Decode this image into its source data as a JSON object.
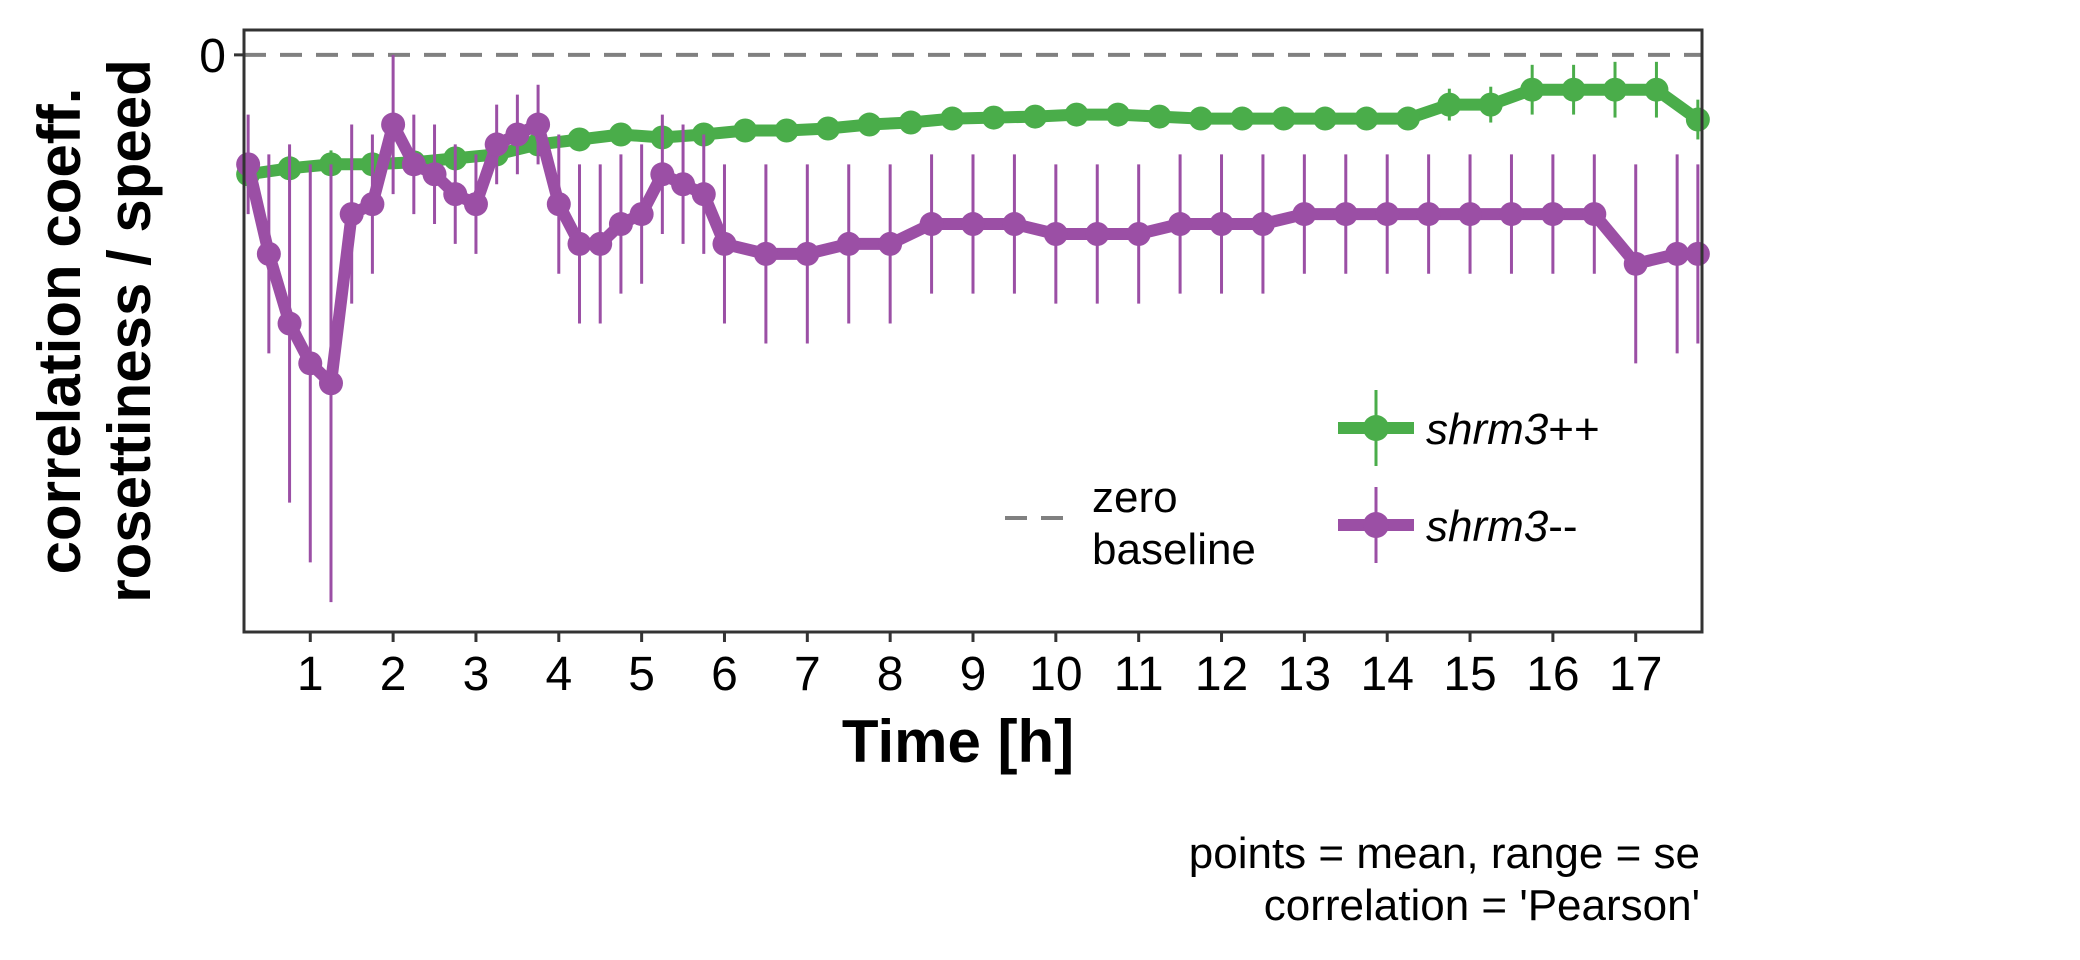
{
  "chart_data": {
    "type": "line",
    "title": "",
    "xlabel": "Time [h]",
    "ylabel_lines": [
      "correlation coeff.",
      "rosettiness / speed"
    ],
    "x_ticks": [
      1,
      2,
      3,
      4,
      5,
      6,
      7,
      8,
      9,
      10,
      11,
      12,
      13,
      14,
      15,
      16,
      17
    ],
    "y_ticks": [
      0
    ],
    "xlim": [
      0.2,
      17.8
    ],
    "ylim": [
      -0.58,
      0.025
    ],
    "grid": false,
    "reference_line": {
      "y": 0,
      "label_lines": [
        "zero",
        "baseline"
      ],
      "color": "#808080"
    },
    "legend": {
      "placement": "bottom-right",
      "entries": [
        {
          "series": 0,
          "label_italic": "shrm3",
          "label_suffix": "++"
        },
        {
          "series": 1,
          "label_italic": "shrm3",
          "label_suffix": "--"
        }
      ]
    },
    "caption_lines": [
      "points = mean, range = se",
      "correlation = 'Pearson'"
    ],
    "series": [
      {
        "name": "shrm3++",
        "color": "#4aad4a",
        "x": [
          0.25,
          0.75,
          1.25,
          1.75,
          2.25,
          2.75,
          3.25,
          3.75,
          4.25,
          4.75,
          5.25,
          5.75,
          6.25,
          6.75,
          7.25,
          7.75,
          8.25,
          8.75,
          9.25,
          9.75,
          10.25,
          10.75,
          11.25,
          11.75,
          12.25,
          12.75,
          13.25,
          13.75,
          14.25,
          14.75,
          15.25,
          15.75,
          16.25,
          16.75,
          17.25,
          17.75
        ],
        "y": [
          -0.12,
          -0.114,
          -0.11,
          -0.11,
          -0.108,
          -0.104,
          -0.1,
          -0.09,
          -0.085,
          -0.08,
          -0.083,
          -0.08,
          -0.076,
          -0.076,
          -0.074,
          -0.07,
          -0.068,
          -0.064,
          -0.063,
          -0.062,
          -0.06,
          -0.06,
          -0.062,
          -0.064,
          -0.064,
          -0.064,
          -0.064,
          -0.064,
          -0.064,
          -0.05,
          -0.05,
          -0.035,
          -0.035,
          -0.035,
          -0.035,
          -0.065
        ],
        "se": [
          0.014,
          0.014,
          0.014,
          0.012,
          0.012,
          0.012,
          0.011,
          0.01,
          0.01,
          0.01,
          0.009,
          0.009,
          0.009,
          0.009,
          0.009,
          0.009,
          0.008,
          0.008,
          0.008,
          0.008,
          0.008,
          0.008,
          0.008,
          0.008,
          0.008,
          0.008,
          0.008,
          0.008,
          0.008,
          0.016,
          0.018,
          0.025,
          0.025,
          0.028,
          0.028,
          0.02
        ]
      },
      {
        "name": "shrm3--",
        "color": "#9b4fa5",
        "x": [
          0.25,
          0.5,
          0.75,
          1.0,
          1.25,
          1.5,
          1.75,
          2.0,
          2.25,
          2.5,
          2.75,
          3.0,
          3.25,
          3.5,
          3.75,
          4.0,
          4.25,
          4.5,
          4.75,
          5.0,
          5.25,
          5.5,
          5.75,
          6.0,
          6.5,
          7.0,
          7.5,
          8.0,
          8.5,
          9.0,
          9.5,
          10.0,
          10.5,
          11.0,
          11.5,
          12.0,
          12.5,
          13.0,
          13.5,
          14.0,
          14.5,
          15.0,
          15.5,
          16.0,
          16.5,
          17.0,
          17.5,
          17.75
        ],
        "y": [
          -0.11,
          -0.2,
          -0.27,
          -0.31,
          -0.33,
          -0.16,
          -0.15,
          -0.07,
          -0.11,
          -0.12,
          -0.14,
          -0.15,
          -0.09,
          -0.08,
          -0.07,
          -0.15,
          -0.19,
          -0.19,
          -0.17,
          -0.16,
          -0.12,
          -0.13,
          -0.14,
          -0.19,
          -0.2,
          -0.2,
          -0.19,
          -0.19,
          -0.17,
          -0.17,
          -0.17,
          -0.18,
          -0.18,
          -0.18,
          -0.17,
          -0.17,
          -0.17,
          -0.16,
          -0.16,
          -0.16,
          -0.16,
          -0.16,
          -0.16,
          -0.16,
          -0.16,
          -0.21,
          -0.2,
          -0.2
        ],
        "se": [
          0.05,
          0.1,
          0.18,
          0.2,
          0.22,
          0.09,
          0.07,
          0.07,
          0.05,
          0.05,
          0.05,
          0.05,
          0.04,
          0.04,
          0.04,
          0.07,
          0.08,
          0.08,
          0.07,
          0.07,
          0.06,
          0.06,
          0.06,
          0.08,
          0.09,
          0.09,
          0.08,
          0.08,
          0.07,
          0.07,
          0.07,
          0.07,
          0.07,
          0.07,
          0.07,
          0.07,
          0.07,
          0.06,
          0.06,
          0.06,
          0.06,
          0.06,
          0.06,
          0.06,
          0.06,
          0.1,
          0.1,
          0.09
        ]
      }
    ]
  }
}
